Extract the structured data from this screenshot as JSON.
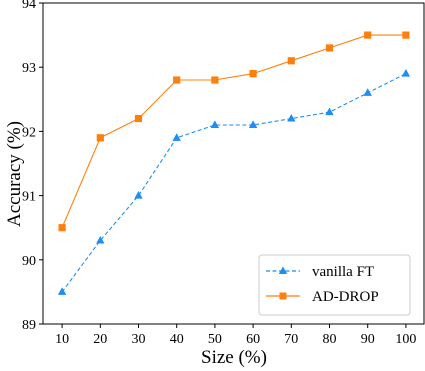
{
  "chart_data": {
    "type": "line",
    "title": "",
    "xlabel": "Size (%)",
    "ylabel": "Accuracy (%)",
    "x": [
      10,
      20,
      30,
      40,
      50,
      60,
      70,
      80,
      90,
      100
    ],
    "xlim": [
      5,
      105
    ],
    "ylim": [
      89,
      94
    ],
    "xticks": [
      "10",
      "20",
      "30",
      "40",
      "50",
      "60",
      "70",
      "80",
      "90",
      "100"
    ],
    "yticks": [
      "89",
      "90",
      "91",
      "92",
      "93",
      "94"
    ],
    "grid": false,
    "legend_position": "lower-right",
    "series": [
      {
        "name": "vanilla FT",
        "values": [
          89.5,
          90.3,
          91.0,
          91.9,
          92.1,
          92.1,
          92.2,
          92.3,
          92.6,
          92.9
        ],
        "color": "#1f8ef1",
        "linestyle": "dashed",
        "marker": "triangle"
      },
      {
        "name": "AD-DROP",
        "values": [
          90.5,
          91.9,
          92.2,
          92.8,
          92.8,
          92.9,
          93.1,
          93.3,
          93.5,
          93.5
        ],
        "color": "#ff7f0e",
        "linestyle": "solid",
        "marker": "square"
      }
    ]
  }
}
